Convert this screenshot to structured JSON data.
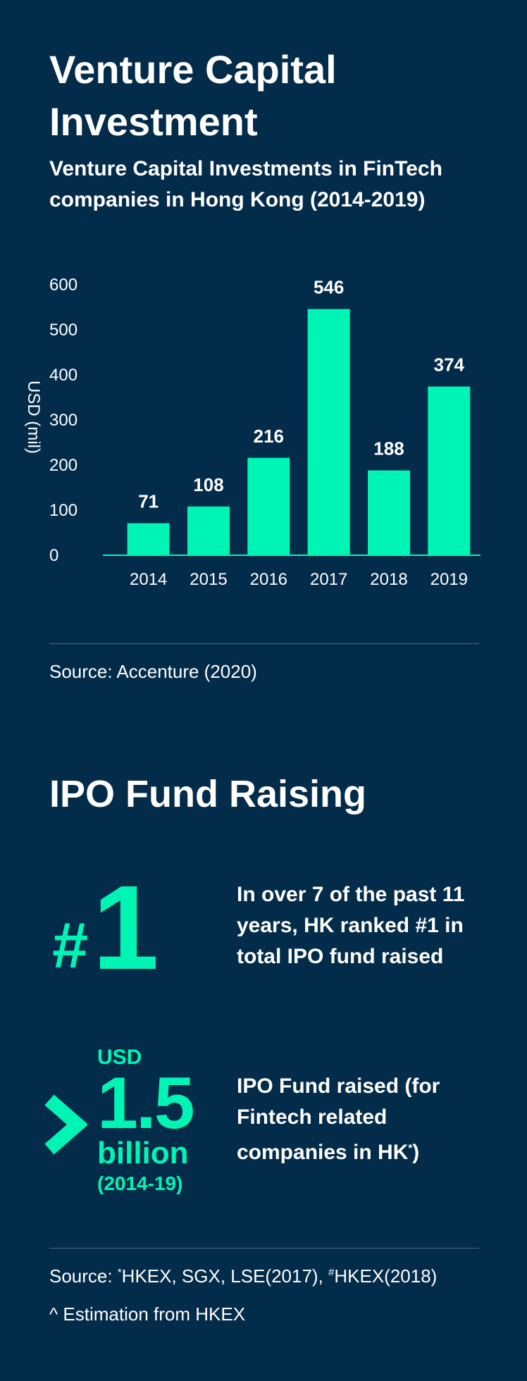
{
  "header": {
    "title": "Venture Capital Investment",
    "subtitle": "Venture Capital Investments in FinTech companies in Hong Kong (2014-2019)"
  },
  "colors": {
    "background": "#032b4a",
    "accent": "#00f5b4",
    "text": "#ffffff",
    "divider": "#4d6a83"
  },
  "chart_data": {
    "type": "bar",
    "title": "Venture Capital Investments in FinTech companies in Hong Kong (2014-2019)",
    "xlabel": "",
    "ylabel": "USD (mil)",
    "categories": [
      "2014",
      "2015",
      "2016",
      "2017",
      "2018",
      "2019"
    ],
    "values": [
      71,
      108,
      216,
      546,
      188,
      374
    ],
    "yticks": [
      0,
      100,
      200,
      300,
      400,
      500,
      600
    ],
    "ylim": [
      0,
      600
    ],
    "grid": false,
    "legend": "none",
    "data_labels": true
  },
  "vc_source": "Source: Accenture (2020)",
  "ipo": {
    "heading": "IPO Fund Raising",
    "rank_hash": "#",
    "rank_number": "1",
    "rank_text": "In over 7 of the past 11 years, HK ranked #1 in total IPO fund raised",
    "usd_label": "USD",
    "amount": "1.5",
    "unit": "billion",
    "period": "(2014-19)",
    "amount_text": "IPO Fund raised (for Fintech related companies in HK",
    "amount_text_mark": "*",
    "amount_text_end": ")",
    "chevron_icon": "chevron-right-icon"
  },
  "footer": {
    "source_prefix": "Source: ",
    "source_mark1": "*",
    "source_part1": "HKEX, SGX, LSE(2017), ",
    "source_mark2": "#",
    "source_part2": "HKEX(2018)",
    "note": "^ Estimation from HKEX"
  }
}
